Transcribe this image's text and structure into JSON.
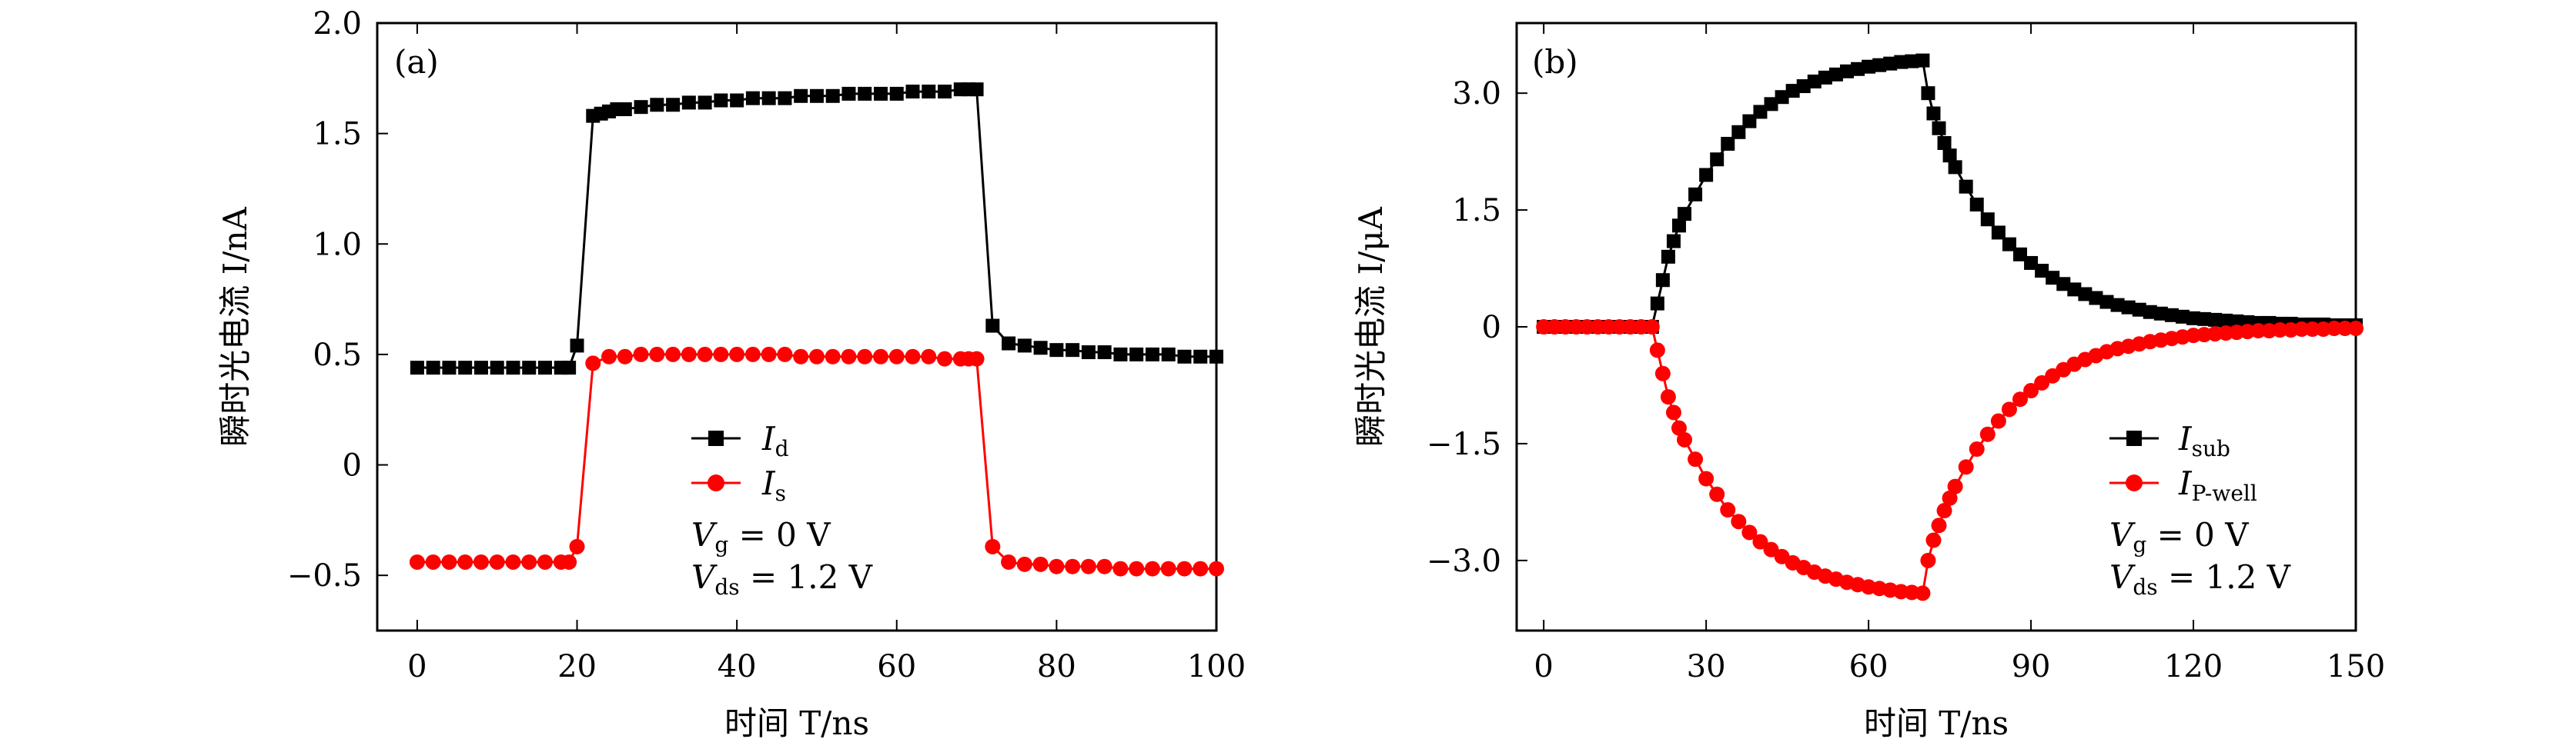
{
  "chart_data": [
    {
      "panel": "(a)",
      "type": "line",
      "xlabel": "时间 T/ns",
      "ylabel": "瞬时光电流 I/nA",
      "xlim": [
        -5,
        100
      ],
      "ylim": [
        -0.75,
        2.0
      ],
      "xticks": [
        "0",
        "20",
        "40",
        "60",
        "80",
        "100"
      ],
      "yticks": [
        "−0.5",
        "0",
        "0.5",
        "1.0",
        "1.5",
        "2.0"
      ],
      "series": [
        {
          "name": "Id",
          "color": "#000000",
          "marker": "square",
          "x": [
            0,
            2,
            4,
            6,
            8,
            10,
            12,
            14,
            16,
            18,
            19,
            20,
            22,
            23,
            24,
            25,
            26,
            28,
            30,
            32,
            34,
            36,
            38,
            40,
            42,
            44,
            46,
            48,
            50,
            52,
            54,
            56,
            58,
            60,
            62,
            64,
            66,
            68,
            69,
            70,
            72,
            74,
            76,
            78,
            80,
            82,
            84,
            86,
            88,
            90,
            92,
            94,
            96,
            98,
            100
          ],
          "values": [
            0.44,
            0.44,
            0.44,
            0.44,
            0.44,
            0.44,
            0.44,
            0.44,
            0.44,
            0.44,
            0.44,
            0.54,
            1.58,
            1.59,
            1.6,
            1.61,
            1.61,
            1.62,
            1.63,
            1.63,
            1.64,
            1.64,
            1.65,
            1.65,
            1.66,
            1.66,
            1.66,
            1.67,
            1.67,
            1.67,
            1.68,
            1.68,
            1.68,
            1.68,
            1.69,
            1.69,
            1.69,
            1.7,
            1.7,
            1.7,
            0.63,
            0.55,
            0.54,
            0.53,
            0.52,
            0.52,
            0.51,
            0.51,
            0.5,
            0.5,
            0.5,
            0.5,
            0.49,
            0.49,
            0.49
          ]
        },
        {
          "name": "Is",
          "color": "#ff0000",
          "marker": "circle",
          "x": [
            0,
            2,
            4,
            6,
            8,
            10,
            12,
            14,
            16,
            18,
            19,
            20,
            22,
            24,
            26,
            28,
            30,
            32,
            34,
            36,
            38,
            40,
            42,
            44,
            46,
            48,
            50,
            52,
            54,
            56,
            58,
            60,
            62,
            64,
            66,
            68,
            69,
            70,
            72,
            74,
            76,
            78,
            80,
            82,
            84,
            86,
            88,
            90,
            92,
            94,
            96,
            98,
            100
          ],
          "values": [
            -0.44,
            -0.44,
            -0.44,
            -0.44,
            -0.44,
            -0.44,
            -0.44,
            -0.44,
            -0.44,
            -0.44,
            -0.44,
            -0.37,
            0.46,
            0.49,
            0.49,
            0.5,
            0.5,
            0.5,
            0.5,
            0.5,
            0.5,
            0.5,
            0.5,
            0.5,
            0.5,
            0.49,
            0.49,
            0.49,
            0.49,
            0.49,
            0.49,
            0.49,
            0.49,
            0.49,
            0.48,
            0.48,
            0.48,
            0.48,
            -0.37,
            -0.44,
            -0.45,
            -0.45,
            -0.46,
            -0.46,
            -0.46,
            -0.46,
            -0.47,
            -0.47,
            -0.47,
            -0.47,
            -0.47,
            -0.47,
            -0.47
          ]
        }
      ]
    },
    {
      "panel": "(b)",
      "type": "line",
      "xlabel": "时间 T/ns",
      "ylabel": "瞬时光电流 I/μA",
      "xlim": [
        -5,
        150
      ],
      "ylim": [
        -3.9,
        3.9
      ],
      "xticks": [
        "0",
        "30",
        "60",
        "90",
        "120",
        "150"
      ],
      "yticks": [
        "−3.0",
        "−1.5",
        "0",
        "1.5",
        "3.0"
      ],
      "series": [
        {
          "name": "Isub",
          "color": "#000000",
          "marker": "square",
          "x": [
            0,
            2,
            4,
            6,
            8,
            10,
            12,
            14,
            16,
            18,
            20,
            21,
            22,
            23,
            24,
            25,
            26,
            28,
            30,
            32,
            34,
            36,
            38,
            40,
            42,
            44,
            46,
            48,
            50,
            52,
            54,
            56,
            58,
            60,
            62,
            64,
            66,
            68,
            70,
            71,
            72,
            73,
            74,
            75,
            76,
            78,
            80,
            82,
            84,
            86,
            88,
            90,
            92,
            94,
            96,
            98,
            100,
            102,
            104,
            106,
            108,
            110,
            112,
            114,
            116,
            118,
            120,
            122,
            124,
            126,
            128,
            130,
            132,
            134,
            136,
            138,
            140,
            142,
            144,
            146,
            148,
            150
          ],
          "values": [
            0,
            0,
            0,
            0,
            0,
            0,
            0,
            0,
            0,
            0,
            0,
            0.3,
            0.6,
            0.9,
            1.1,
            1.3,
            1.45,
            1.7,
            1.95,
            2.15,
            2.35,
            2.5,
            2.64,
            2.76,
            2.86,
            2.95,
            3.03,
            3.09,
            3.15,
            3.2,
            3.24,
            3.28,
            3.31,
            3.34,
            3.36,
            3.38,
            3.4,
            3.41,
            3.42,
            3.0,
            2.74,
            2.55,
            2.36,
            2.2,
            2.05,
            1.8,
            1.57,
            1.38,
            1.21,
            1.06,
            0.93,
            0.82,
            0.72,
            0.63,
            0.55,
            0.48,
            0.42,
            0.37,
            0.32,
            0.28,
            0.25,
            0.22,
            0.19,
            0.17,
            0.15,
            0.13,
            0.11,
            0.1,
            0.09,
            0.08,
            0.07,
            0.06,
            0.05,
            0.05,
            0.04,
            0.04,
            0.03,
            0.03,
            0.03,
            0.02,
            0.02,
            0.02
          ]
        },
        {
          "name": "IP-well",
          "color": "#ff0000",
          "marker": "circle",
          "x": [
            0,
            2,
            4,
            6,
            8,
            10,
            12,
            14,
            16,
            18,
            20,
            21,
            22,
            23,
            24,
            25,
            26,
            28,
            30,
            32,
            34,
            36,
            38,
            40,
            42,
            44,
            46,
            48,
            50,
            52,
            54,
            56,
            58,
            60,
            62,
            64,
            66,
            68,
            70,
            71,
            72,
            73,
            74,
            75,
            76,
            78,
            80,
            82,
            84,
            86,
            88,
            90,
            92,
            94,
            96,
            98,
            100,
            102,
            104,
            106,
            108,
            110,
            112,
            114,
            116,
            118,
            120,
            122,
            124,
            126,
            128,
            130,
            132,
            134,
            136,
            138,
            140,
            142,
            144,
            146,
            148,
            150
          ],
          "values": [
            0,
            0,
            0,
            0,
            0,
            0,
            0,
            0,
            0,
            0,
            0,
            -0.3,
            -0.6,
            -0.9,
            -1.1,
            -1.3,
            -1.45,
            -1.7,
            -1.95,
            -2.15,
            -2.35,
            -2.5,
            -2.64,
            -2.76,
            -2.86,
            -2.95,
            -3.03,
            -3.09,
            -3.15,
            -3.2,
            -3.24,
            -3.28,
            -3.31,
            -3.34,
            -3.36,
            -3.38,
            -3.4,
            -3.41,
            -3.42,
            -3.0,
            -2.74,
            -2.55,
            -2.36,
            -2.2,
            -2.05,
            -1.8,
            -1.57,
            -1.38,
            -1.21,
            -1.06,
            -0.93,
            -0.82,
            -0.72,
            -0.63,
            -0.55,
            -0.48,
            -0.42,
            -0.37,
            -0.32,
            -0.28,
            -0.25,
            -0.22,
            -0.19,
            -0.17,
            -0.15,
            -0.13,
            -0.11,
            -0.1,
            -0.09,
            -0.08,
            -0.07,
            -0.06,
            -0.05,
            -0.05,
            -0.04,
            -0.04,
            -0.03,
            -0.03,
            -0.03,
            -0.02,
            -0.02,
            -0.02
          ]
        }
      ]
    }
  ],
  "legends": [
    {
      "entries": [
        {
          "main": "I",
          "sub": "d"
        },
        {
          "main": "I",
          "sub": "s"
        }
      ],
      "conditions": [
        {
          "main": "V",
          "sub": "g",
          "rest": " = 0 V"
        },
        {
          "main": "V",
          "sub": "ds",
          "rest": " = 1.2 V"
        }
      ]
    },
    {
      "entries": [
        {
          "main": "I",
          "sub": "sub"
        },
        {
          "main": "I",
          "sub": "P-well"
        }
      ],
      "conditions": [
        {
          "main": "V",
          "sub": "g",
          "rest": " = 0 V"
        },
        {
          "main": "V",
          "sub": "ds",
          "rest": " = 1.2 V"
        }
      ]
    }
  ]
}
